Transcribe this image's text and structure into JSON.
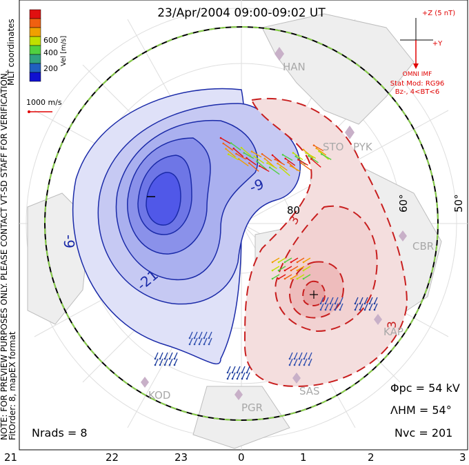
{
  "title": "23/Apr/2004 09:00-09:02 UT",
  "side_notes": {
    "coordinates": "MLT coordinates",
    "preview": "NOTE: FOR PREVIEW PURPOSES ONLY. PLEASE CONTACT VT-SD STAFF FOR VERIFICATION.",
    "fit": "FitOrder: 8, mapEX format"
  },
  "colorbar": {
    "label": "Vel [m/s]",
    "ticks": [
      "600",
      "400",
      "200"
    ],
    "colors": [
      "#e01010",
      "#f06010",
      "#f0a000",
      "#c0e000",
      "#50d040",
      "#30a080",
      "#2060c0",
      "#1010d0"
    ]
  },
  "scale_vector": {
    "label": "1000 m/s",
    "color": "#e00000"
  },
  "imf": {
    "z_label": "+Z (5 nT)",
    "y_label": "+Y",
    "source": "OMNI IMF",
    "model": "Stat Mod: RG96",
    "condition": "Bz-, 4<BT<6"
  },
  "stations": [
    "HAN",
    "STO",
    "PYK",
    "CBR",
    "KAP",
    "SAS",
    "PGR",
    "KOD"
  ],
  "latitude_labels": [
    "80",
    "60°",
    "50°"
  ],
  "contour_labels": {
    "negative": [
      "-9",
      "-21",
      "-9",
      "-3"
    ],
    "positive": [
      "3",
      "3"
    ]
  },
  "mlt_labels": [
    "21",
    "22",
    "23",
    "0",
    "1",
    "2",
    "3"
  ],
  "stats": {
    "phi_pc": "Φpc = 54 kV",
    "lambda_hm": "ΛHM = 54°",
    "n_vc": "Nvc = 201",
    "n_rads": "Nrads = 8"
  },
  "fill_colors": {
    "dusk_cell": "#5058e8",
    "dawn_cell": "#e88080",
    "vectors_warm": "#f06020",
    "vectors_cool": "#2040a0"
  }
}
